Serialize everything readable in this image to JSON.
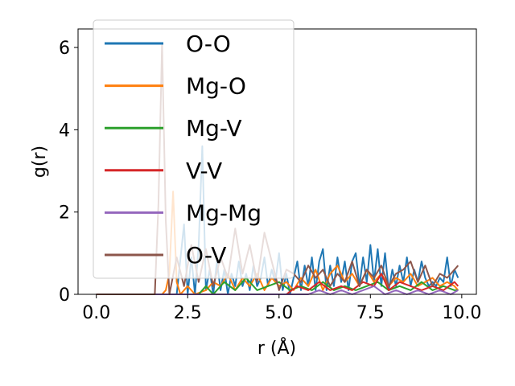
{
  "chart_data": {
    "type": "line",
    "xlabel": "r (Å)",
    "ylabel": "g(r)",
    "xlim": [
      -0.5,
      10.4
    ],
    "ylim": [
      0,
      6.45
    ],
    "xticks": [
      0.0,
      2.5,
      5.0,
      7.5,
      10.0
    ],
    "xtick_labels": [
      "0.0",
      "2.5",
      "5.0",
      "7.5",
      "10.0"
    ],
    "yticks": [
      0,
      2,
      4,
      6
    ],
    "ytick_labels": [
      "0",
      "2",
      "4",
      "6"
    ],
    "grid": false,
    "legend_position": "upper-left",
    "series": [
      {
        "name": "O-O",
        "color": "#1f77b4",
        "x": [
          0.0,
          2.2,
          2.4,
          2.5,
          2.6,
          2.7,
          2.8,
          2.9,
          3.0,
          3.1,
          3.2,
          3.3,
          3.4,
          3.5,
          3.6,
          3.7,
          3.8,
          3.9,
          4.0,
          4.1,
          4.2,
          4.3,
          4.4,
          4.5,
          4.6,
          4.7,
          4.8,
          4.9,
          5.0,
          5.1,
          5.2,
          5.3,
          5.4,
          5.5,
          5.6,
          5.7,
          5.8,
          5.9,
          6.0,
          6.1,
          6.2,
          6.3,
          6.4,
          6.5,
          6.6,
          6.7,
          6.8,
          6.9,
          7.0,
          7.1,
          7.2,
          7.3,
          7.4,
          7.5,
          7.6,
          7.7,
          7.8,
          7.9,
          8.0,
          8.1,
          8.2,
          8.3,
          8.4,
          8.5,
          8.6,
          8.7,
          8.8,
          8.9,
          9.0,
          9.1,
          9.2,
          9.3,
          9.4,
          9.5,
          9.6,
          9.7,
          9.8,
          9.9
        ],
        "y": [
          0,
          0,
          1.7,
          0,
          0.9,
          0,
          1.2,
          3.6,
          0.1,
          0.6,
          0,
          0.8,
          0.1,
          0.6,
          0,
          0.5,
          0.2,
          0.8,
          0.2,
          0.5,
          0.1,
          0.7,
          0.2,
          0.4,
          0.9,
          0.2,
          0.6,
          0.3,
          1.0,
          0.1,
          0.5,
          0,
          0.4,
          0.8,
          0.1,
          0.7,
          0.2,
          0.9,
          0.1,
          0.8,
          1.1,
          0.1,
          0.7,
          0.2,
          0.9,
          0.3,
          0.8,
          0.1,
          0.8,
          1.0,
          0.2,
          0.9,
          0.3,
          1.2,
          0.3,
          1.1,
          0.2,
          1.0,
          0.1,
          0.6,
          0.2,
          0.7,
          0.3,
          0.9,
          0.2,
          0.6,
          0.3,
          0.8,
          0.4,
          0.2,
          0.3,
          0.2,
          0.4,
          0.3,
          0.9,
          0.2,
          0.6,
          0.4
        ]
      },
      {
        "name": "Mg-O",
        "color": "#ff7f0e",
        "x": [
          0.0,
          1.7,
          1.8,
          1.9,
          2.0,
          2.1,
          2.2,
          2.3,
          2.5,
          2.7,
          3.0,
          3.2,
          3.4,
          3.6,
          3.8,
          4.0,
          4.2,
          4.4,
          4.6,
          4.8,
          5.0,
          5.2,
          5.4,
          5.6,
          5.8,
          6.0,
          6.2,
          6.4,
          6.6,
          6.8,
          7.0,
          7.2,
          7.4,
          7.6,
          7.8,
          8.0,
          8.2,
          8.4,
          8.6,
          8.8,
          9.0,
          9.2,
          9.4,
          9.6,
          9.8,
          9.9
        ],
        "y": [
          0,
          0,
          0,
          0.1,
          0.5,
          2.5,
          0.3,
          0,
          0.2,
          0,
          0.1,
          0.3,
          0.2,
          0.5,
          0.1,
          0.4,
          0.2,
          0.5,
          0.1,
          0.4,
          0.2,
          0.3,
          0.1,
          0.4,
          0.2,
          0.6,
          0.1,
          0.5,
          0.7,
          0.3,
          0.5,
          0.2,
          0.6,
          0.3,
          0.5,
          0.2,
          0.4,
          0.3,
          0.5,
          0.2,
          0.3,
          0.4,
          0.2,
          0.3,
          0.2,
          0.1
        ]
      },
      {
        "name": "Mg-V",
        "color": "#2ca02c",
        "x": [
          0.0,
          2.8,
          3.0,
          3.2,
          3.5,
          3.8,
          4.1,
          4.4,
          4.7,
          5.0,
          5.3,
          5.6,
          5.9,
          6.2,
          6.5,
          6.8,
          7.1,
          7.4,
          7.7,
          8.0,
          8.3,
          8.6,
          8.9,
          9.2,
          9.5,
          9.8,
          9.9
        ],
        "y": [
          0,
          0,
          0.2,
          0,
          0.3,
          0.1,
          0.4,
          0.1,
          0.2,
          0.3,
          0.1,
          0.2,
          0.1,
          0.3,
          0.1,
          0.2,
          0.1,
          0.2,
          0.3,
          0.1,
          0.2,
          0.1,
          0.3,
          0.1,
          0.2,
          0.1,
          0.1
        ]
      },
      {
        "name": "V-V",
        "color": "#d62728",
        "x": [
          0.0,
          5.2,
          5.5,
          5.8,
          6.1,
          6.4,
          6.7,
          7.0,
          7.3,
          7.6,
          7.8,
          8.0,
          8.3,
          8.6,
          8.9,
          9.2,
          9.5,
          9.8,
          9.9
        ],
        "y": [
          0,
          0,
          0.2,
          0.1,
          0.3,
          0.1,
          0.2,
          0.1,
          0.3,
          0.2,
          0.5,
          0.1,
          0.3,
          0.2,
          0.1,
          0.2,
          0.1,
          0.3,
          0.2
        ]
      },
      {
        "name": "Mg-Mg",
        "color": "#9467bd",
        "x": [
          0.0,
          5.8,
          6.1,
          6.4,
          6.7,
          7.0,
          7.3,
          7.6,
          7.9,
          8.2,
          8.5,
          8.8,
          9.1,
          9.4,
          9.7,
          9.9
        ],
        "y": [
          0,
          0,
          0.1,
          0,
          0.1,
          0,
          0.1,
          0.2,
          0,
          0.1,
          0,
          0.1,
          0,
          0.1,
          0,
          0.1
        ]
      },
      {
        "name": "O-V",
        "color": "#8c564b",
        "x": [
          0.0,
          1.6,
          1.7,
          1.8,
          1.9,
          2.0,
          2.2,
          2.4,
          2.6,
          2.8,
          3.0,
          3.2,
          3.4,
          3.6,
          3.8,
          4.0,
          4.2,
          4.4,
          4.6,
          4.8,
          5.0,
          5.2,
          5.4,
          5.6,
          5.8,
          6.0,
          6.2,
          6.4,
          6.6,
          6.8,
          7.0,
          7.2,
          7.4,
          7.6,
          7.8,
          8.0,
          8.2,
          8.4,
          8.6,
          8.8,
          9.0,
          9.2,
          9.4,
          9.6,
          9.8,
          9.9
        ],
        "y": [
          0,
          0,
          2.2,
          6.1,
          1.8,
          0,
          0.9,
          0.2,
          1.2,
          0.3,
          1.1,
          0.2,
          0.9,
          0.4,
          1.6,
          0.5,
          1.2,
          0.3,
          1.5,
          0.8,
          0.1,
          0.6,
          0.5,
          0.3,
          0.7,
          0.4,
          0.6,
          0.2,
          0.5,
          0.3,
          0.8,
          0.2,
          0.6,
          0.4,
          0.7,
          0.2,
          0.5,
          0.6,
          0.8,
          0.3,
          0.7,
          0.2,
          0.5,
          0.4,
          0.6,
          0.7
        ]
      }
    ]
  }
}
